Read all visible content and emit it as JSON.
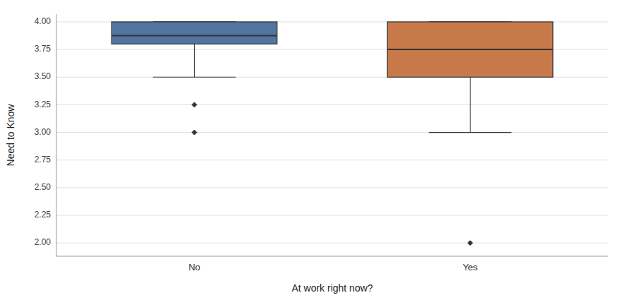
{
  "chart_data": {
    "type": "box",
    "categories": [
      "No",
      "Yes"
    ],
    "boxes": [
      {
        "q1": 3.8,
        "median": 3.875,
        "q3": 4.0,
        "whislo": 3.5,
        "whishi": 4.0,
        "fliers": [
          3.25,
          3.0
        ]
      },
      {
        "q1": 3.5,
        "median": 3.75,
        "q3": 4.0,
        "whislo": 3.0,
        "whishi": 4.0,
        "fliers": [
          2.0
        ]
      }
    ],
    "colors": [
      "#5275a0",
      "#c8794a"
    ],
    "xlabel": "At work right now?",
    "ylabel": "Need to Know",
    "ylim": [
      1.88,
      4.07
    ],
    "yticks": [
      {
        "value": 2.0,
        "label": "2.00"
      },
      2.25,
      {
        "value": 2.5,
        "label": "2.50"
      },
      2.75,
      {
        "value": 3.0,
        "label": "3.00"
      },
      3.25,
      {
        "value": 3.5,
        "label": "3.50"
      },
      3.75,
      {
        "value": 4.0,
        "label": "4.00"
      }
    ],
    "grid": true
  }
}
